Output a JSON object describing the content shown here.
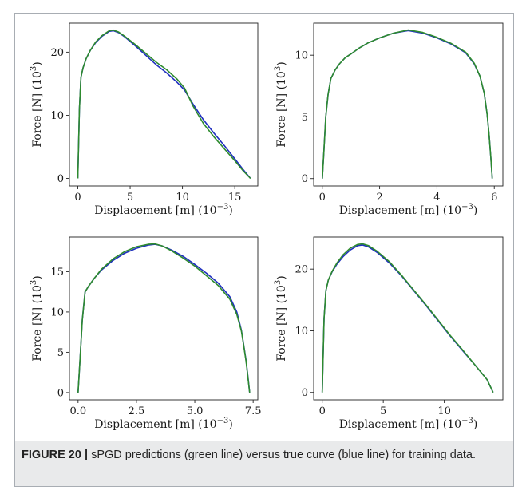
{
  "caption": {
    "label": "FIGURE 20 |",
    "text": "sPGD predictions (green line) versus true curve (blue line) for training data."
  },
  "colors": {
    "prediction": "#2e8b2e",
    "true": "#1f2fbf",
    "axis": "#222222"
  },
  "chart_data": [
    {
      "type": "line",
      "xlabel": "Displacement [m] (10^-3)",
      "ylabel": "Force [N] (10^3)",
      "xlim": [
        -0.8,
        17.2
      ],
      "ylim": [
        -1.2,
        24.6
      ],
      "xticks": [
        0,
        5,
        10,
        15
      ],
      "xtick_labels": [
        "0",
        "5",
        "10",
        "15"
      ],
      "yticks": [
        0,
        10,
        20
      ],
      "ytick_labels": [
        "0",
        "10",
        "20"
      ],
      "series": [
        {
          "role": "true",
          "x": [
            0,
            0.15,
            0.3,
            0.5,
            0.8,
            1.2,
            1.7,
            2.3,
            3.0,
            3.4,
            3.9,
            4.5,
            5.5,
            6.5,
            7.5,
            8.5,
            9.5,
            10.2,
            11,
            12,
            13,
            14,
            15,
            15.8,
            16.5
          ],
          "y": [
            0,
            11,
            16,
            17.5,
            19,
            20.3,
            21.5,
            22.5,
            23.3,
            23.4,
            23.1,
            22.4,
            21,
            19.5,
            18,
            16.7,
            15.2,
            14,
            11.8,
            9.3,
            7.2,
            5.2,
            3.1,
            1.4,
            0
          ]
        },
        {
          "role": "prediction",
          "x": [
            0,
            0.15,
            0.3,
            0.5,
            0.8,
            1.2,
            1.7,
            2.3,
            3.0,
            3.4,
            3.9,
            4.5,
            5.5,
            6.5,
            7.5,
            8.5,
            9.5,
            10.2,
            11,
            12,
            13,
            14,
            15,
            15.8,
            16.5
          ],
          "y": [
            0,
            11,
            16,
            17.5,
            19,
            20.3,
            21.6,
            22.6,
            23.4,
            23.5,
            23.2,
            22.5,
            21.2,
            19.8,
            18.4,
            17.2,
            15.7,
            14.3,
            11.5,
            8.7,
            6.6,
            4.7,
            2.8,
            1.2,
            0
          ]
        }
      ]
    },
    {
      "type": "line",
      "xlabel": "Displacement [m] (10^-3)",
      "ylabel": "Force [N] (10^3)",
      "xlim": [
        -0.3,
        6.3
      ],
      "ylim": [
        -0.6,
        12.6
      ],
      "xticks": [
        0,
        2,
        4,
        6
      ],
      "xtick_labels": [
        "0",
        "2",
        "4",
        "6"
      ],
      "yticks": [
        0,
        5,
        10
      ],
      "ytick_labels": [
        "0",
        "5",
        "10"
      ],
      "series": [
        {
          "role": "true",
          "x": [
            0,
            0.05,
            0.12,
            0.2,
            0.3,
            0.45,
            0.6,
            0.8,
            1.0,
            1.3,
            1.6,
            2.0,
            2.5,
            3.0,
            3.5,
            4.0,
            4.5,
            5.0,
            5.3,
            5.5,
            5.65,
            5.75,
            5.82,
            5.88,
            5.93
          ],
          "y": [
            0,
            2,
            5,
            6.8,
            8.1,
            8.8,
            9.3,
            9.8,
            10.1,
            10.6,
            11,
            11.4,
            11.8,
            12,
            11.8,
            11.4,
            10.9,
            10.2,
            9.3,
            8.3,
            6.9,
            5.2,
            3.5,
            1.7,
            0
          ]
        },
        {
          "role": "prediction",
          "x": [
            0,
            0.05,
            0.12,
            0.2,
            0.3,
            0.45,
            0.6,
            0.8,
            1.0,
            1.3,
            1.6,
            2.0,
            2.5,
            3.0,
            3.5,
            4.0,
            4.5,
            5.0,
            5.3,
            5.5,
            5.65,
            5.75,
            5.82,
            5.88,
            5.93
          ],
          "y": [
            0,
            2,
            5,
            6.8,
            8.1,
            8.8,
            9.3,
            9.8,
            10.1,
            10.6,
            11,
            11.4,
            11.8,
            12.05,
            11.85,
            11.45,
            10.95,
            10.25,
            9.35,
            8.3,
            6.9,
            5.2,
            3.5,
            1.7,
            0
          ]
        }
      ]
    },
    {
      "type": "line",
      "xlabel": "Displacement [m] (10^-3)",
      "ylabel": "Force [N] (10^3)",
      "xlim": [
        -0.37,
        7.7
      ],
      "ylim": [
        -0.9,
        19.3
      ],
      "xticks": [
        0,
        2.5,
        5,
        7.5
      ],
      "xtick_labels": [
        "0.0",
        "2.5",
        "5.0",
        "7.5"
      ],
      "yticks": [
        0,
        5,
        10,
        15
      ],
      "ytick_labels": [
        "0",
        "5",
        "10",
        "15"
      ],
      "series": [
        {
          "role": "true",
          "x": [
            0,
            0.08,
            0.18,
            0.3,
            0.45,
            0.7,
            1.0,
            1.5,
            2.0,
            2.5,
            3.0,
            3.3,
            3.6,
            4.0,
            4.5,
            5.0,
            5.5,
            6.0,
            6.5,
            6.8,
            7.0,
            7.1,
            7.2,
            7.28,
            7.35
          ],
          "y": [
            0,
            4,
            9,
            12.5,
            13.2,
            14.2,
            15.2,
            16.4,
            17.3,
            17.9,
            18.3,
            18.4,
            18.2,
            17.7,
            16.9,
            15.9,
            14.8,
            13.6,
            11.9,
            10,
            7.7,
            5.8,
            3.9,
            1.9,
            0
          ]
        },
        {
          "role": "prediction",
          "x": [
            0,
            0.08,
            0.18,
            0.3,
            0.45,
            0.7,
            1.0,
            1.5,
            2.0,
            2.5,
            3.0,
            3.3,
            3.6,
            4.0,
            4.5,
            5.0,
            5.5,
            6.0,
            6.5,
            6.8,
            7.0,
            7.1,
            7.2,
            7.28,
            7.35
          ],
          "y": [
            0,
            4,
            9,
            12.5,
            13.2,
            14.2,
            15.3,
            16.6,
            17.5,
            18.1,
            18.4,
            18.45,
            18.2,
            17.6,
            16.7,
            15.7,
            14.5,
            13.3,
            11.6,
            9.7,
            7.6,
            5.7,
            3.8,
            1.8,
            0
          ]
        }
      ]
    },
    {
      "type": "line",
      "xlabel": "Displacement [m] (10^-3)",
      "ylabel": "Force [N] (10^3)",
      "xlim": [
        -0.7,
        14.8
      ],
      "ylim": [
        -1.2,
        25.2
      ],
      "xticks": [
        0,
        5,
        10
      ],
      "xtick_labels": [
        "0",
        "5",
        "10"
      ],
      "yticks": [
        0,
        10,
        20
      ],
      "ytick_labels": [
        "0",
        "10",
        "20"
      ],
      "series": [
        {
          "role": "true",
          "x": [
            0,
            0.15,
            0.3,
            0.5,
            0.8,
            1.2,
            1.7,
            2.3,
            2.9,
            3.3,
            3.8,
            4.5,
            5.5,
            6.5,
            7.5,
            8.5,
            9.5,
            10.5,
            11.5,
            12.5,
            13.5,
            14.0
          ],
          "y": [
            0,
            12,
            16.5,
            18.2,
            19.5,
            20.8,
            22,
            23.1,
            23.8,
            23.9,
            23.6,
            22.7,
            21,
            18.9,
            16.5,
            14.1,
            11.6,
            9.1,
            6.8,
            4.5,
            2.1,
            0
          ]
        },
        {
          "role": "prediction",
          "x": [
            0,
            0.15,
            0.3,
            0.5,
            0.8,
            1.2,
            1.7,
            2.3,
            2.9,
            3.3,
            3.8,
            4.5,
            5.5,
            6.5,
            7.5,
            8.5,
            9.5,
            10.5,
            11.5,
            12.5,
            13.5,
            14.0
          ],
          "y": [
            0,
            12,
            16.5,
            18.2,
            19.6,
            21,
            22.3,
            23.4,
            24.0,
            24.1,
            23.8,
            22.9,
            21.2,
            19.0,
            16.6,
            14.2,
            11.7,
            9.2,
            6.9,
            4.5,
            2.1,
            0
          ]
        }
      ]
    }
  ]
}
